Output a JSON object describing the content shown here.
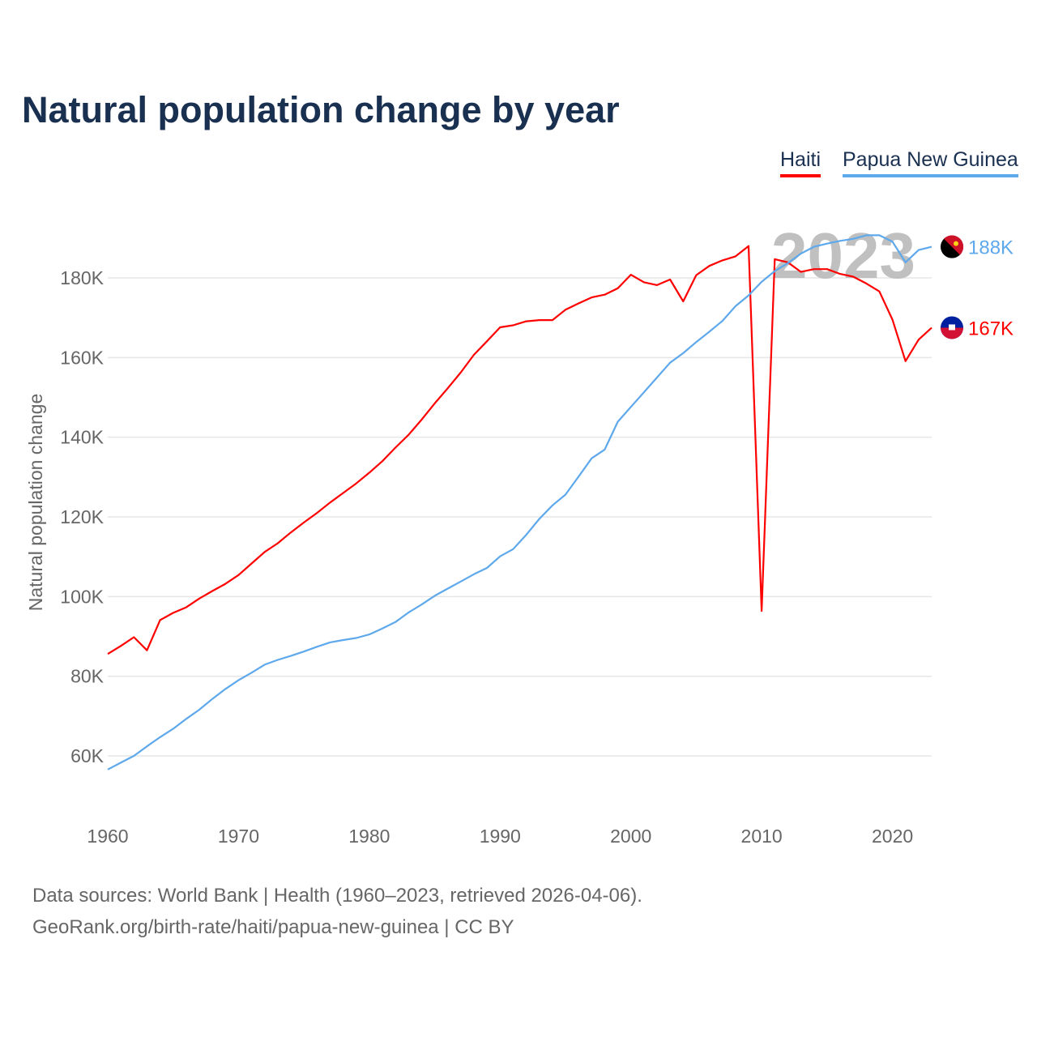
{
  "title": "Natural population change by year",
  "legend": [
    {
      "label": "Haiti",
      "color": "#ff0000"
    },
    {
      "label": "Papua New Guinea",
      "color": "#5ea8ec"
    }
  ],
  "year_watermark": "2023",
  "footer": {
    "line1": "Data sources: World Bank | Health (1960–2023, retrieved 2026-04-06).",
    "line2": "GeoRank.org/birth-rate/haiti/papua-new-guinea | CC BY"
  },
  "chart_data": {
    "type": "line",
    "title": "Natural population change by year",
    "xlabel": "",
    "ylabel": "Natural population change",
    "xlim": [
      1960,
      2023
    ],
    "ylim": [
      46000,
      193000
    ],
    "x_ticks": [
      1960,
      1970,
      1980,
      1990,
      2000,
      2010,
      2020
    ],
    "y_ticks": [
      {
        "v": 60000,
        "label": "60K"
      },
      {
        "v": 80000,
        "label": "80K"
      },
      {
        "v": 100000,
        "label": "100K"
      },
      {
        "v": 120000,
        "label": "120K"
      },
      {
        "v": 140000,
        "label": "140K"
      },
      {
        "v": 160000,
        "label": "160K"
      },
      {
        "v": 180000,
        "label": "180K"
      }
    ],
    "grid": true,
    "legend_position": "top-right",
    "start_year": 1960,
    "series": [
      {
        "name": "Haiti",
        "color": "#ff0000",
        "end_label": "167K",
        "values": [
          85600,
          87600,
          89800,
          86500,
          94100,
          95900,
          97300,
          99500,
          101400,
          103200,
          105400,
          108300,
          111200,
          113400,
          116100,
          118600,
          121000,
          123600,
          126000,
          128400,
          131100,
          134000,
          137400,
          140600,
          144400,
          148500,
          152300,
          156300,
          160700,
          164100,
          167600,
          168100,
          169100,
          169400,
          169400,
          172000,
          173600,
          175100,
          175800,
          177400,
          180800,
          178900,
          178200,
          179600,
          174100,
          180700,
          183000,
          184400,
          185400,
          188000,
          96400,
          184700,
          183900,
          181500,
          182200,
          182200,
          181000,
          180300,
          178600,
          176600,
          169500,
          159100,
          164500,
          167500
        ]
      },
      {
        "name": "Papua New Guinea",
        "color": "#5ea8ec",
        "end_label": "188K",
        "values": [
          56600,
          58300,
          60000,
          62400,
          64700,
          66800,
          69300,
          71600,
          74300,
          76800,
          79000,
          80900,
          82900,
          84100,
          85100,
          86200,
          87400,
          88500,
          89100,
          89600,
          90500,
          92000,
          93600,
          96000,
          98000,
          100200,
          102000,
          103800,
          105600,
          107200,
          110100,
          111900,
          115500,
          119500,
          122900,
          125600,
          130100,
          134700,
          136900,
          143900,
          147600,
          151300,
          155000,
          158700,
          161100,
          163900,
          166500,
          169200,
          172900,
          175600,
          179000,
          181700,
          183700,
          186100,
          187800,
          188600,
          189300,
          189800,
          190700,
          190700,
          189100,
          183900,
          187000,
          187800
        ]
      }
    ]
  }
}
